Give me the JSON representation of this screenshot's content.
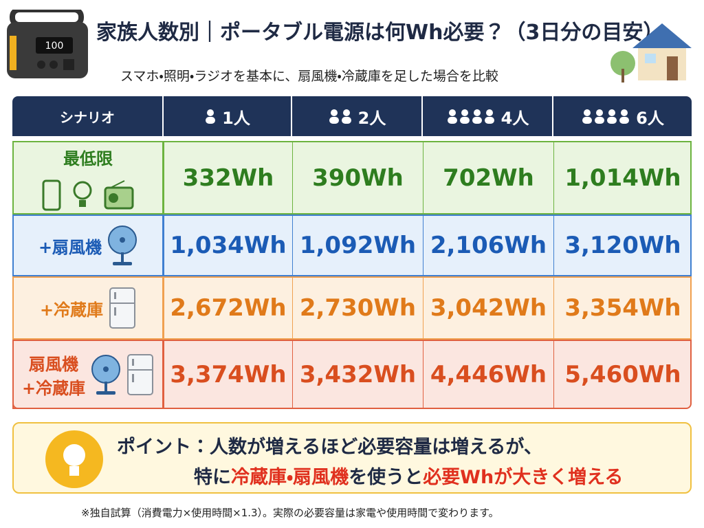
{
  "header": {
    "title": "家族人数別｜ポータブル電源は何Wh必要？（3日分の目安）",
    "subtitle": "スマホ・照明・ラジオを基本に、扇風機・冷蔵庫を足した場合を比較",
    "device_display": "100"
  },
  "table": {
    "headers": [
      "シナリオ",
      "1人",
      "2人",
      "4人",
      "6人"
    ],
    "rows": [
      {
        "label": [
          "最低限"
        ],
        "cells": [
          "332Wh",
          "390Wh",
          "702Wh",
          "1,014Wh"
        ]
      },
      {
        "label": [
          "+扇風機"
        ],
        "cells": [
          "1,034Wh",
          "1,092Wh",
          "2,106Wh",
          "3,120Wh"
        ]
      },
      {
        "label": [
          "+冷蔵庫"
        ],
        "cells": [
          "2,672Wh",
          "2,730Wh",
          "3,042Wh",
          "3,354Wh"
        ]
      },
      {
        "label": [
          "扇風機",
          "+冷蔵庫"
        ],
        "cells": [
          "3,374Wh",
          "3,432Wh",
          "4,446Wh",
          "5,460Wh"
        ]
      }
    ]
  },
  "point": {
    "line1": "ポイント：人数が増えるほど必要容量は増えるが、",
    "line2": [
      {
        "text": "特に",
        "emphasis": false
      },
      {
        "text": "冷蔵庫・扇風機",
        "emphasis": true
      },
      {
        "text": "を使うと",
        "emphasis": false
      },
      {
        "text": "必要Whが大きく増える",
        "emphasis": true
      }
    ]
  },
  "footnote": "※独自試算（消費電力×使用時間×1.3）。実際の必要容量は家電や使用時間で変わります。"
}
